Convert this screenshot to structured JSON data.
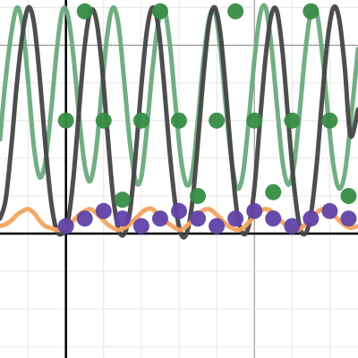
{
  "chart_data": {
    "type": "line",
    "title": "",
    "xlabel": "",
    "ylabel": "",
    "xlim": [
      -1.75,
      7.75
    ],
    "ylim": [
      -3.3,
      6.2
    ],
    "grid": true,
    "minor_step": 1,
    "major_step": 5,
    "axis_color": "#000000",
    "grid_color": "#e6e6e6",
    "major_grid_color": "#888888",
    "series": [
      {
        "kind": "curve",
        "color": "#6aaa7d",
        "points": [
          [
            -1.75,
            2.5
          ],
          [
            -1.6,
            4.1
          ],
          [
            -1.45,
            5.3
          ],
          [
            -1.3,
            6.0
          ],
          [
            -1.15,
            5.5
          ],
          [
            -1.0,
            4.0
          ],
          [
            -0.85,
            2.3
          ],
          [
            -0.7,
            1.5
          ],
          [
            -0.55,
            1.9
          ],
          [
            -0.4,
            3.2
          ],
          [
            -0.25,
            4.8
          ],
          [
            -0.1,
            5.9
          ],
          [
            0.05,
            5.8
          ],
          [
            0.2,
            4.7
          ],
          [
            0.35,
            3.1
          ],
          [
            0.5,
            1.8
          ],
          [
            0.65,
            1.4
          ],
          [
            0.8,
            2.2
          ],
          [
            0.95,
            3.8
          ],
          [
            1.1,
            5.3
          ],
          [
            1.25,
            6.0
          ],
          [
            1.4,
            5.5
          ],
          [
            1.55,
            4.0
          ],
          [
            1.7,
            2.4
          ],
          [
            1.85,
            1.4
          ],
          [
            2.0,
            1.5
          ],
          [
            2.15,
            2.8
          ],
          [
            2.3,
            4.4
          ],
          [
            2.45,
            5.6
          ],
          [
            2.6,
            6.0
          ],
          [
            2.75,
            5.1
          ],
          [
            2.9,
            3.5
          ],
          [
            3.05,
            2.0
          ],
          [
            3.2,
            1.3
          ],
          [
            3.35,
            1.6
          ],
          [
            3.5,
            3.0
          ],
          [
            3.65,
            4.6
          ],
          [
            3.8,
            5.7
          ],
          [
            3.95,
            5.9
          ],
          [
            4.1,
            4.9
          ],
          [
            4.25,
            3.3
          ],
          [
            4.4,
            1.9
          ],
          [
            4.55,
            1.2
          ],
          [
            4.7,
            1.6
          ],
          [
            4.85,
            3.0
          ],
          [
            5.0,
            4.6
          ],
          [
            5.15,
            5.8
          ],
          [
            5.3,
            6.0
          ],
          [
            5.45,
            5.0
          ],
          [
            5.6,
            3.4
          ],
          [
            5.75,
            1.9
          ],
          [
            5.9,
            1.3
          ],
          [
            6.05,
            1.8
          ],
          [
            6.2,
            3.2
          ],
          [
            6.35,
            4.8
          ],
          [
            6.5,
            5.9
          ],
          [
            6.65,
            5.9
          ],
          [
            6.8,
            4.8
          ],
          [
            6.95,
            3.2
          ],
          [
            7.1,
            1.8
          ],
          [
            7.25,
            1.2
          ],
          [
            7.4,
            1.6
          ],
          [
            7.55,
            2.9
          ],
          [
            7.75,
            4.9
          ]
        ]
      },
      {
        "kind": "curve",
        "color": "#454545",
        "points": [
          [
            -1.75,
            0.4
          ],
          [
            -1.6,
            0.9
          ],
          [
            -1.45,
            2.3
          ],
          [
            -1.3,
            4.0
          ],
          [
            -1.15,
            5.3
          ],
          [
            -1.0,
            6.0
          ],
          [
            -0.85,
            5.6
          ],
          [
            -0.7,
            4.2
          ],
          [
            -0.55,
            2.4
          ],
          [
            -0.4,
            0.9
          ],
          [
            -0.25,
            0.1
          ],
          [
            -0.1,
            0.0
          ],
          [
            0.05,
            0.3
          ],
          [
            0.2,
            1.5
          ],
          [
            0.35,
            3.3
          ],
          [
            0.5,
            5.0
          ],
          [
            0.65,
            5.9
          ],
          [
            0.8,
            5.7
          ],
          [
            0.95,
            4.5
          ],
          [
            1.1,
            2.7
          ],
          [
            1.25,
            1.0
          ],
          [
            1.4,
            0.1
          ],
          [
            1.55,
            0.0
          ],
          [
            1.7,
            0.6
          ],
          [
            1.85,
            2.1
          ],
          [
            2.0,
            3.9
          ],
          [
            2.15,
            5.4
          ],
          [
            2.3,
            6.0
          ],
          [
            2.45,
            5.5
          ],
          [
            2.6,
            4.0
          ],
          [
            2.75,
            2.2
          ],
          [
            2.9,
            0.8
          ],
          [
            3.05,
            0.0
          ],
          [
            3.2,
            0.0
          ],
          [
            3.35,
            0.8
          ],
          [
            3.5,
            2.4
          ],
          [
            3.65,
            4.2
          ],
          [
            3.8,
            5.6
          ],
          [
            3.95,
            6.0
          ],
          [
            4.1,
            5.3
          ],
          [
            4.25,
            3.7
          ],
          [
            4.4,
            1.9
          ],
          [
            4.55,
            0.5
          ],
          [
            4.7,
            0.0
          ],
          [
            4.85,
            0.2
          ],
          [
            5.0,
            1.2
          ],
          [
            5.15,
            3.0
          ],
          [
            5.3,
            4.7
          ],
          [
            5.45,
            5.8
          ],
          [
            5.6,
            5.9
          ],
          [
            5.75,
            4.8
          ],
          [
            5.9,
            3.0
          ],
          [
            6.05,
            1.3
          ],
          [
            6.2,
            0.2
          ],
          [
            6.35,
            0.0
          ],
          [
            6.5,
            0.5
          ],
          [
            6.65,
            1.8
          ],
          [
            6.8,
            3.6
          ],
          [
            6.95,
            5.2
          ],
          [
            7.1,
            6.0
          ],
          [
            7.25,
            5.7
          ],
          [
            7.4,
            4.4
          ],
          [
            7.55,
            2.6
          ],
          [
            7.75,
            3.3
          ]
        ]
      },
      {
        "kind": "curve",
        "color": "#f4a460",
        "points": [
          [
            -1.75,
            0.2
          ],
          [
            -1.6,
            0.25
          ],
          [
            -1.45,
            0.35
          ],
          [
            -1.3,
            0.5
          ],
          [
            -1.15,
            0.6
          ],
          [
            -1.0,
            0.65
          ],
          [
            -0.85,
            0.55
          ],
          [
            -0.7,
            0.35
          ],
          [
            -0.55,
            0.2
          ],
          [
            -0.4,
            0.15
          ],
          [
            -0.25,
            0.1
          ],
          [
            -0.1,
            0.1
          ],
          [
            0.05,
            0.2
          ],
          [
            0.2,
            0.35
          ],
          [
            0.35,
            0.5
          ],
          [
            0.5,
            0.6
          ],
          [
            0.65,
            0.65
          ],
          [
            0.8,
            0.55
          ],
          [
            0.95,
            0.4
          ],
          [
            1.1,
            0.25
          ],
          [
            1.25,
            0.15
          ],
          [
            1.4,
            0.1
          ],
          [
            1.55,
            0.15
          ],
          [
            1.7,
            0.25
          ],
          [
            1.85,
            0.4
          ],
          [
            2.0,
            0.55
          ],
          [
            2.15,
            0.65
          ],
          [
            2.3,
            0.65
          ],
          [
            2.45,
            0.5
          ],
          [
            2.6,
            0.35
          ],
          [
            2.75,
            0.25
          ],
          [
            2.9,
            0.15
          ],
          [
            3.05,
            0.1
          ],
          [
            3.2,
            0.2
          ],
          [
            3.35,
            0.35
          ],
          [
            3.5,
            0.5
          ],
          [
            3.65,
            0.62
          ],
          [
            3.8,
            0.65
          ],
          [
            3.95,
            0.55
          ],
          [
            4.1,
            0.4
          ],
          [
            4.25,
            0.25
          ],
          [
            4.4,
            0.15
          ],
          [
            4.55,
            0.1
          ],
          [
            4.7,
            0.15
          ],
          [
            4.85,
            0.3
          ],
          [
            5.0,
            0.45
          ],
          [
            5.15,
            0.6
          ],
          [
            5.3,
            0.65
          ],
          [
            5.45,
            0.6
          ],
          [
            5.6,
            0.45
          ],
          [
            5.75,
            0.3
          ],
          [
            5.9,
            0.18
          ],
          [
            6.05,
            0.1
          ],
          [
            6.2,
            0.12
          ],
          [
            6.35,
            0.25
          ],
          [
            6.5,
            0.4
          ],
          [
            6.65,
            0.55
          ],
          [
            6.8,
            0.65
          ],
          [
            6.95,
            0.62
          ],
          [
            7.1,
            0.5
          ],
          [
            7.25,
            0.35
          ],
          [
            7.4,
            0.22
          ],
          [
            7.55,
            0.15
          ],
          [
            7.75,
            0.2
          ]
        ]
      },
      {
        "kind": "points",
        "color": "#388c46",
        "points": [
          [
            0.0,
            3.0
          ],
          [
            0.5,
            5.9
          ],
          [
            1.0,
            3.0
          ],
          [
            1.5,
            0.9
          ],
          [
            2.0,
            3.0
          ],
          [
            2.5,
            5.9
          ],
          [
            3.0,
            3.0
          ],
          [
            3.5,
            1.0
          ],
          [
            4.0,
            3.0
          ],
          [
            4.5,
            5.9
          ],
          [
            5.0,
            3.0
          ],
          [
            5.5,
            1.1
          ],
          [
            6.0,
            3.0
          ],
          [
            6.5,
            5.9
          ],
          [
            7.0,
            3.0
          ],
          [
            7.5,
            1.0
          ]
        ]
      },
      {
        "kind": "points",
        "color": "#6042a6",
        "points": [
          [
            0.0,
            0.2
          ],
          [
            0.5,
            0.4
          ],
          [
            1.0,
            0.6
          ],
          [
            1.5,
            0.4
          ],
          [
            2.0,
            0.2
          ],
          [
            2.5,
            0.4
          ],
          [
            3.0,
            0.6
          ],
          [
            3.5,
            0.4
          ],
          [
            4.0,
            0.2
          ],
          [
            4.5,
            0.4
          ],
          [
            5.0,
            0.6
          ],
          [
            5.5,
            0.4
          ],
          [
            6.0,
            0.2
          ],
          [
            6.5,
            0.4
          ],
          [
            7.0,
            0.6
          ],
          [
            7.5,
            0.4
          ]
        ]
      }
    ]
  }
}
